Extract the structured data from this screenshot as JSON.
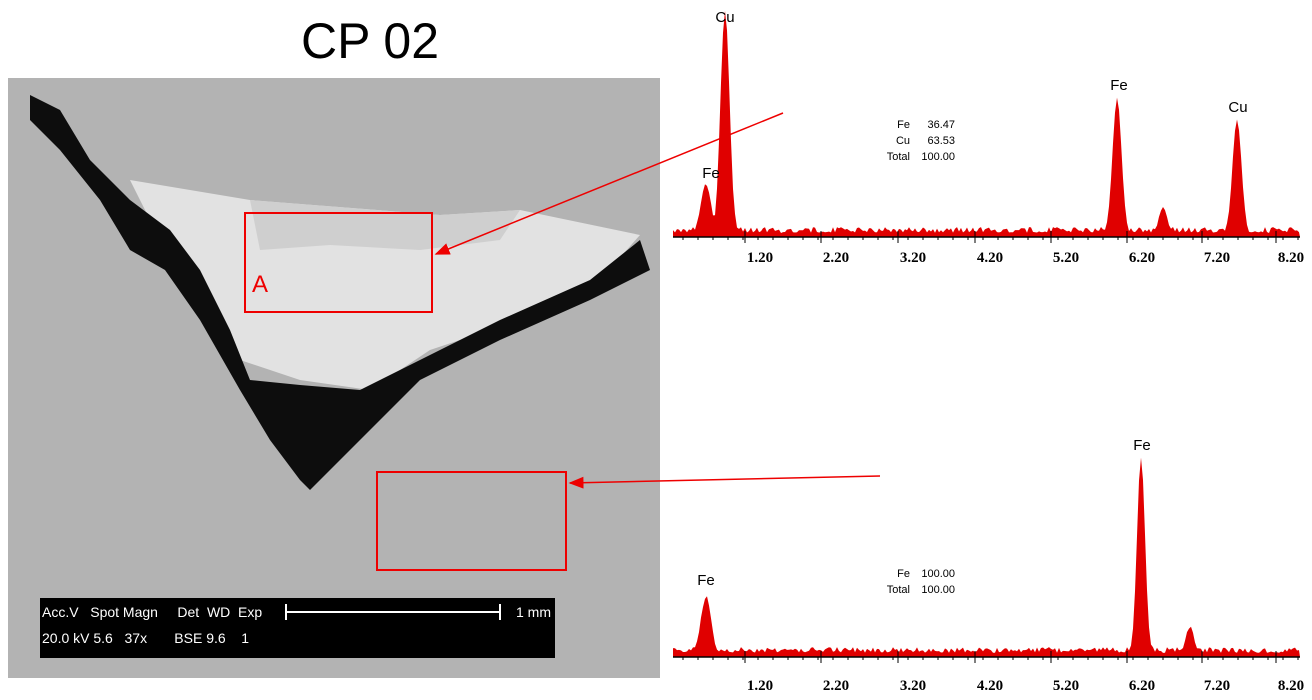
{
  "title": "CP 02",
  "sem_image": {
    "region_label": "A",
    "info_bar": {
      "header": "Acc.V   Spot Magn     Det  WD  Exp",
      "values": "20.0 kV 5.6   37x       BSE 9.6    1",
      "scale": "1 mm"
    }
  },
  "spectra": [
    {
      "peak_labels": [
        "Cu",
        "Fe",
        "Fe",
        "Cu"
      ],
      "composition": [
        [
          "Fe",
          "36.47"
        ],
        [
          "Cu",
          "63.53"
        ],
        [
          "Total",
          "100.00"
        ]
      ],
      "x_tick_labels": [
        "1.20",
        "2.20",
        "3.20",
        "4.20",
        "5.20",
        "6.20",
        "7.20",
        "8.20"
      ]
    },
    {
      "peak_labels": [
        "Fe",
        "Fe"
      ],
      "composition": [
        [
          "Fe",
          "100.00"
        ],
        [
          "Total",
          "100.00"
        ]
      ],
      "x_tick_labels": [
        "1.20",
        "2.20",
        "3.20",
        "4.20",
        "5.20",
        "6.20",
        "7.20",
        "8.20"
      ]
    }
  ]
}
